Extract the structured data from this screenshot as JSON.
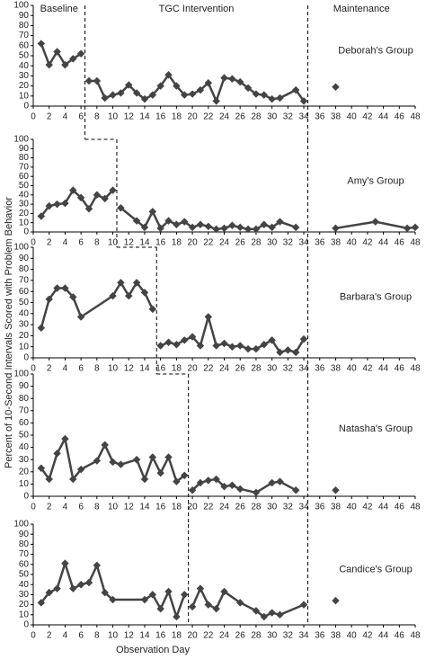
{
  "y_label": "Percent of 10-Second Intervals Scored with Problem Behavior",
  "x_label": "Observation Day",
  "chart_data": [
    {
      "type": "line",
      "title": "Deborah's Group",
      "annotations": [
        "Baseline",
        "TGC Intervention",
        "Maintenance"
      ],
      "xlim": [
        0,
        48
      ],
      "xticks": [
        0,
        2,
        4,
        6,
        8,
        10,
        12,
        14,
        16,
        18,
        20,
        22,
        24,
        26,
        28,
        30,
        32,
        34,
        36,
        38,
        40,
        42,
        44,
        46,
        48
      ],
      "ylim": [
        0,
        100
      ],
      "yticks": [
        0,
        10,
        20,
        30,
        40,
        50,
        60,
        70,
        80,
        90,
        100
      ],
      "phase_lines": [
        6.5,
        34.5
      ],
      "series": [
        {
          "color": "#444444",
          "x": [
            1,
            2,
            3,
            4,
            5,
            6
          ],
          "values": [
            62,
            41,
            54,
            41,
            47,
            52
          ]
        },
        {
          "color": "#444444",
          "x": [
            7,
            8,
            9,
            10,
            11,
            12,
            13,
            14,
            15,
            16,
            17,
            18,
            19,
            20,
            21,
            22,
            23,
            24,
            25,
            26,
            27,
            28,
            29,
            30,
            31,
            33,
            34
          ],
          "values": [
            25,
            25,
            8,
            11,
            13,
            21,
            13,
            7,
            11,
            20,
            31,
            20,
            11,
            12,
            16,
            23,
            5,
            28,
            27,
            24,
            18,
            12,
            11,
            7,
            8,
            16,
            5
          ]
        },
        {
          "color": "#444444",
          "x": [
            38
          ],
          "values": [
            19
          ]
        }
      ]
    },
    {
      "type": "line",
      "title": "Amy's Group",
      "xlim": [
        0,
        48
      ],
      "xticks": [
        0,
        2,
        4,
        6,
        8,
        10,
        12,
        14,
        16,
        18,
        20,
        22,
        24,
        26,
        28,
        30,
        32,
        34,
        36,
        38,
        40,
        42,
        44,
        46,
        48
      ],
      "ylim": [
        0,
        100
      ],
      "yticks": [
        0,
        10,
        20,
        30,
        40,
        50,
        60,
        70,
        80,
        90,
        100
      ],
      "phase_lines": [
        10.5,
        34.5
      ],
      "series": [
        {
          "color": "#444444",
          "x": [
            1,
            2,
            3,
            4,
            5,
            6,
            7,
            8,
            9,
            10
          ],
          "values": [
            17,
            28,
            30,
            31,
            45,
            37,
            25,
            40,
            36,
            45
          ]
        },
        {
          "color": "#444444",
          "x": [
            11,
            13,
            14,
            15,
            16,
            17,
            18,
            19,
            20,
            21,
            22,
            23,
            24,
            25,
            26,
            27,
            28,
            29,
            30,
            31,
            33
          ],
          "values": [
            26,
            12,
            5,
            22,
            4,
            12,
            8,
            11,
            5,
            8,
            6,
            3,
            4,
            7,
            5,
            3,
            3,
            8,
            5,
            11,
            5
          ]
        },
        {
          "color": "#444444",
          "x": [
            38,
            43,
            47,
            48
          ],
          "values": [
            4,
            11,
            4,
            5
          ]
        }
      ]
    },
    {
      "type": "line",
      "title": "Barbara's Group",
      "xlim": [
        0,
        48
      ],
      "xticks": [
        0,
        2,
        4,
        6,
        8,
        10,
        12,
        14,
        16,
        18,
        20,
        22,
        24,
        26,
        28,
        30,
        32,
        34,
        36,
        38,
        40,
        42,
        44,
        46,
        48
      ],
      "ylim": [
        0,
        100
      ],
      "yticks": [
        0,
        10,
        20,
        30,
        40,
        50,
        60,
        70,
        80,
        90,
        100
      ],
      "phase_lines": [
        15.5,
        34.5
      ],
      "series": [
        {
          "color": "#444444",
          "x": [
            1,
            2,
            3,
            4,
            5,
            6,
            10,
            11,
            12,
            13,
            14,
            15
          ],
          "values": [
            27,
            53,
            63,
            63,
            55,
            37,
            56,
            68,
            56,
            68,
            59,
            44
          ]
        },
        {
          "color": "#444444",
          "x": [
            16,
            17,
            18,
            19,
            20,
            21,
            22,
            23,
            24,
            25,
            26,
            27,
            28,
            29,
            30,
            31,
            32,
            33,
            34
          ],
          "values": [
            11,
            14,
            12,
            16,
            19,
            11,
            37,
            11,
            13,
            10,
            11,
            8,
            8,
            12,
            16,
            5,
            7,
            5,
            17
          ]
        }
      ]
    },
    {
      "type": "line",
      "title": "Natasha's Group",
      "xlim": [
        0,
        48
      ],
      "xticks": [
        0,
        2,
        4,
        6,
        8,
        10,
        12,
        14,
        16,
        18,
        20,
        22,
        24,
        26,
        28,
        30,
        32,
        34,
        36,
        38,
        40,
        42,
        44,
        46,
        48
      ],
      "ylim": [
        0,
        100
      ],
      "yticks": [
        0,
        10,
        20,
        30,
        40,
        50,
        60,
        70,
        80,
        90,
        100
      ],
      "phase_lines": [
        19.5,
        34.5
      ],
      "series": [
        {
          "color": "#444444",
          "x": [
            1,
            2,
            3,
            4,
            5,
            6,
            8,
            9,
            10,
            11,
            13,
            14,
            15,
            16,
            17,
            18,
            19
          ],
          "values": [
            23,
            14,
            35,
            47,
            14,
            22,
            29,
            42,
            28,
            26,
            30,
            14,
            32,
            19,
            32,
            12,
            17
          ]
        },
        {
          "color": "#444444",
          "x": [
            20,
            21,
            22,
            23,
            24,
            25,
            26,
            28,
            30,
            31,
            33
          ],
          "values": [
            5,
            11,
            13,
            14,
            8,
            9,
            6,
            3,
            11,
            12,
            5
          ]
        },
        {
          "color": "#444444",
          "x": [
            38
          ],
          "values": [
            5
          ]
        }
      ]
    },
    {
      "type": "line",
      "title": "Candice's Group",
      "xlim": [
        0,
        48
      ],
      "xticks": [
        0,
        2,
        4,
        6,
        8,
        10,
        12,
        14,
        16,
        18,
        20,
        22,
        24,
        26,
        28,
        30,
        32,
        34,
        36,
        38,
        40,
        42,
        44,
        46,
        48
      ],
      "ylim": [
        0,
        100
      ],
      "yticks": [
        0,
        10,
        20,
        30,
        40,
        50,
        60,
        70,
        80,
        90,
        100
      ],
      "phase_lines": [
        19.5,
        34.5
      ],
      "series": [
        {
          "color": "#444444",
          "x": [
            1,
            2,
            3,
            4,
            5,
            6,
            7,
            8,
            9,
            10,
            14,
            15,
            16,
            17,
            18,
            19
          ],
          "values": [
            22,
            32,
            36,
            61,
            36,
            40,
            42,
            59,
            32,
            25,
            25,
            30,
            16,
            33,
            8,
            30
          ]
        },
        {
          "color": "#444444",
          "x": [
            20,
            21,
            22,
            23,
            24,
            26,
            28,
            29,
            30,
            31,
            34
          ],
          "values": [
            18,
            36,
            20,
            16,
            33,
            22,
            14,
            8,
            12,
            10,
            20
          ]
        },
        {
          "color": "#444444",
          "x": [
            38
          ],
          "values": [
            24
          ]
        }
      ]
    }
  ]
}
